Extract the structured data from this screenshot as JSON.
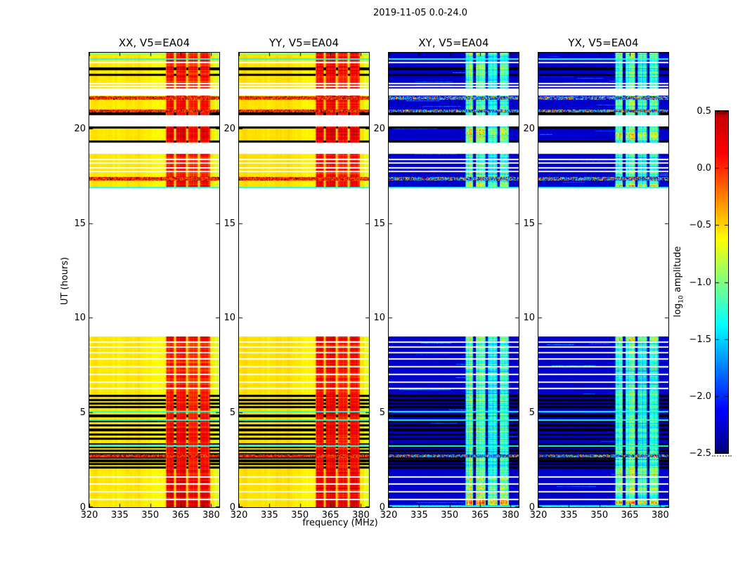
{
  "chart_data": {
    "type": "heatmap",
    "title": "2019-11-05 0.0-24.0",
    "xlabel": "frequency (MHz)",
    "ylabel": "UT (hours)",
    "x_range": [
      320,
      384
    ],
    "x_ticks": [
      320,
      335,
      350,
      365,
      380
    ],
    "y_range": [
      0,
      24
    ],
    "y_ticks": [
      0,
      5,
      10,
      15,
      20
    ],
    "grid": false,
    "colorbar": {
      "label_prefix": "log",
      "label_sub": "10",
      "label_rest": " amplitude",
      "ticks": [
        0.5,
        0.0,
        -0.5,
        -1.0,
        -1.5,
        -2.0,
        -2.5
      ],
      "vmin": -2.5,
      "vmax": 0.5,
      "colormap": "jet"
    },
    "panels": [
      {
        "title": "XX, V5=EA04",
        "kind": "parallel",
        "seed": 11,
        "base_level": -0.57,
        "band_gain": 0.92
      },
      {
        "title": "YY, V5=EA04",
        "kind": "parallel",
        "seed": 22,
        "base_level": -0.55,
        "band_gain": 1.0
      },
      {
        "title": "XY, V5=EA04",
        "kind": "cross",
        "seed": 33,
        "base_level": -2.28,
        "band_gain": 1.35
      },
      {
        "title": "YX, V5=EA04",
        "kind": "cross",
        "seed": 44,
        "base_level": -2.28,
        "band_gain": 1.32
      }
    ],
    "time_segments": [
      {
        "start": 0.0,
        "end": 2.05,
        "band_boost": 1.2
      },
      {
        "start": 2.05,
        "end": 3.45,
        "band_boost": 1.0
      },
      {
        "start": 3.45,
        "end": 5.95,
        "band_boost": 1.0
      },
      {
        "start": 5.95,
        "end": 9.0,
        "band_boost": 0.95
      },
      {
        "start": 16.85,
        "end": 17.55,
        "band_boost": 1.1
      },
      {
        "start": 17.55,
        "end": 18.65,
        "band_boost": 0.95
      },
      {
        "start": 19.3,
        "end": 20.1,
        "band_boost": 1.35
      },
      {
        "start": 20.75,
        "end": 21.75,
        "band_boost": 1.05
      },
      {
        "start": 22.1,
        "end": 22.65,
        "band_boost": 0.95
      },
      {
        "start": 22.65,
        "end": 24.0,
        "band_boost": 1.05
      }
    ],
    "hot_rows": [
      [
        0.0,
        0.45
      ],
      [
        8.8,
        9.0
      ],
      [
        16.85,
        17.0
      ]
    ],
    "flagged_black_rows": [
      [
        2.08,
        0.09
      ],
      [
        2.25,
        0.07
      ],
      [
        2.42,
        0.09
      ],
      [
        2.6,
        0.07
      ],
      [
        2.78,
        0.09
      ],
      [
        2.96,
        0.07
      ],
      [
        3.14,
        0.09
      ],
      [
        3.32,
        0.07
      ],
      [
        3.6,
        0.07
      ],
      [
        3.82,
        0.08
      ],
      [
        4.06,
        0.09
      ],
      [
        4.3,
        0.07
      ],
      [
        4.54,
        0.08
      ],
      [
        4.8,
        0.09
      ],
      [
        5.28,
        0.07
      ],
      [
        5.46,
        0.08
      ],
      [
        5.64,
        0.09
      ],
      [
        5.85,
        0.08
      ],
      [
        19.3,
        0.08
      ],
      [
        20.02,
        0.08
      ],
      [
        20.75,
        0.13
      ],
      [
        22.8,
        0.1
      ],
      [
        23.12,
        0.1
      ]
    ],
    "white_line_rows": [
      0.45,
      0.85,
      1.25,
      1.65,
      6.3,
      6.65,
      7.05,
      7.45,
      7.85,
      8.2,
      8.5,
      8.75,
      17.75,
      17.95,
      18.2,
      18.4,
      22.25,
      22.42,
      23.5
    ],
    "cyan_rows": [
      3.28,
      4.62,
      5.08,
      16.92,
      21.7,
      23.7
    ],
    "speckle_rows": [
      [
        2.68,
        0.1
      ],
      [
        17.28,
        0.14
      ],
      [
        20.9,
        0.1
      ],
      [
        21.56,
        0.13
      ]
    ],
    "top_green_row": {
      "start": 23.88,
      "end": 24.0,
      "level": -0.95
    },
    "bottom_cyan_row": {
      "start": 0.0,
      "end": 0.1,
      "level": -1.5
    },
    "rfi_band": {
      "start": 357.8,
      "end": 380.2,
      "subbands": [
        [
          357.8,
          361.8,
          1.0
        ],
        [
          362.6,
          367.8,
          0.95
        ],
        [
          368.6,
          373.6,
          0.78
        ],
        [
          374.4,
          379.6,
          0.82
        ]
      ],
      "flagged_channels": [
        362.2,
        368.2,
        374.0,
        379.8
      ]
    }
  }
}
